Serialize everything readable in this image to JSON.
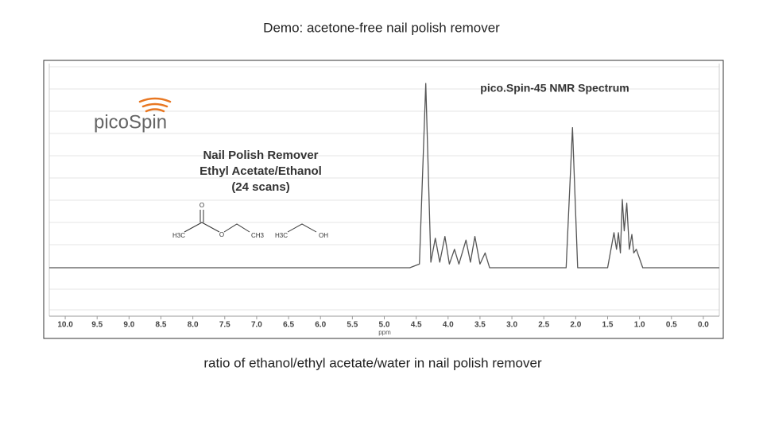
{
  "chart_data": {
    "type": "line",
    "title": "Demo: acetone-free nail polish remover",
    "caption": "ratio of ethanol/ethyl acetate/water in nail polish remover",
    "plot_title": "pico.Spin-45 NMR Spectrum",
    "logo": "picoSpin",
    "annotations": [
      "Nail Polish Remover",
      "Ethyl Acetate/Ethanol",
      "(24 scans)"
    ],
    "molecule_labels": [
      "H3C",
      "O",
      "O",
      "CH3",
      "H3C",
      "OH"
    ],
    "xlabel": "ppm",
    "x": [
      10.25,
      4.6,
      4.45,
      4.35,
      4.27,
      4.2,
      4.13,
      4.05,
      3.98,
      3.9,
      3.83,
      3.72,
      3.65,
      3.58,
      3.5,
      3.42,
      3.35,
      2.15,
      2.05,
      1.97,
      1.5,
      1.4,
      1.36,
      1.33,
      1.3,
      1.27,
      1.24,
      1.2,
      1.16,
      1.12,
      1.09,
      1.05,
      0.95,
      -0.25
    ],
    "values": [
      0,
      0,
      2,
      100,
      3,
      16,
      3,
      17,
      2,
      10,
      2,
      15,
      3,
      17,
      2,
      8,
      0,
      0,
      76,
      0,
      0,
      19,
      10,
      19,
      8,
      37,
      20,
      35,
      10,
      18,
      8,
      10,
      0,
      0
    ],
    "color": "#555555",
    "xlim": [
      10.25,
      -0.25
    ],
    "ylim": [
      0,
      100
    ],
    "xticks": [
      {
        "value": 10,
        "label": "10.0"
      },
      9.5,
      {
        "value": 9,
        "label": "9.0"
      },
      8.5,
      {
        "value": 8,
        "label": "8.0"
      },
      7.5,
      {
        "value": 7,
        "label": "7.0"
      },
      6.5,
      {
        "value": 6,
        "label": "6.0"
      },
      5.5,
      {
        "value": 5,
        "label": "5.0"
      },
      4.5,
      {
        "value": 4,
        "label": "4.0"
      },
      3.5,
      {
        "value": 3,
        "label": "3.0"
      },
      2.5,
      {
        "value": 2,
        "label": "2.0"
      },
      1.5,
      {
        "value": 1,
        "label": "1.0"
      },
      0.5,
      {
        "value": 0,
        "label": "0.0"
      }
    ]
  }
}
